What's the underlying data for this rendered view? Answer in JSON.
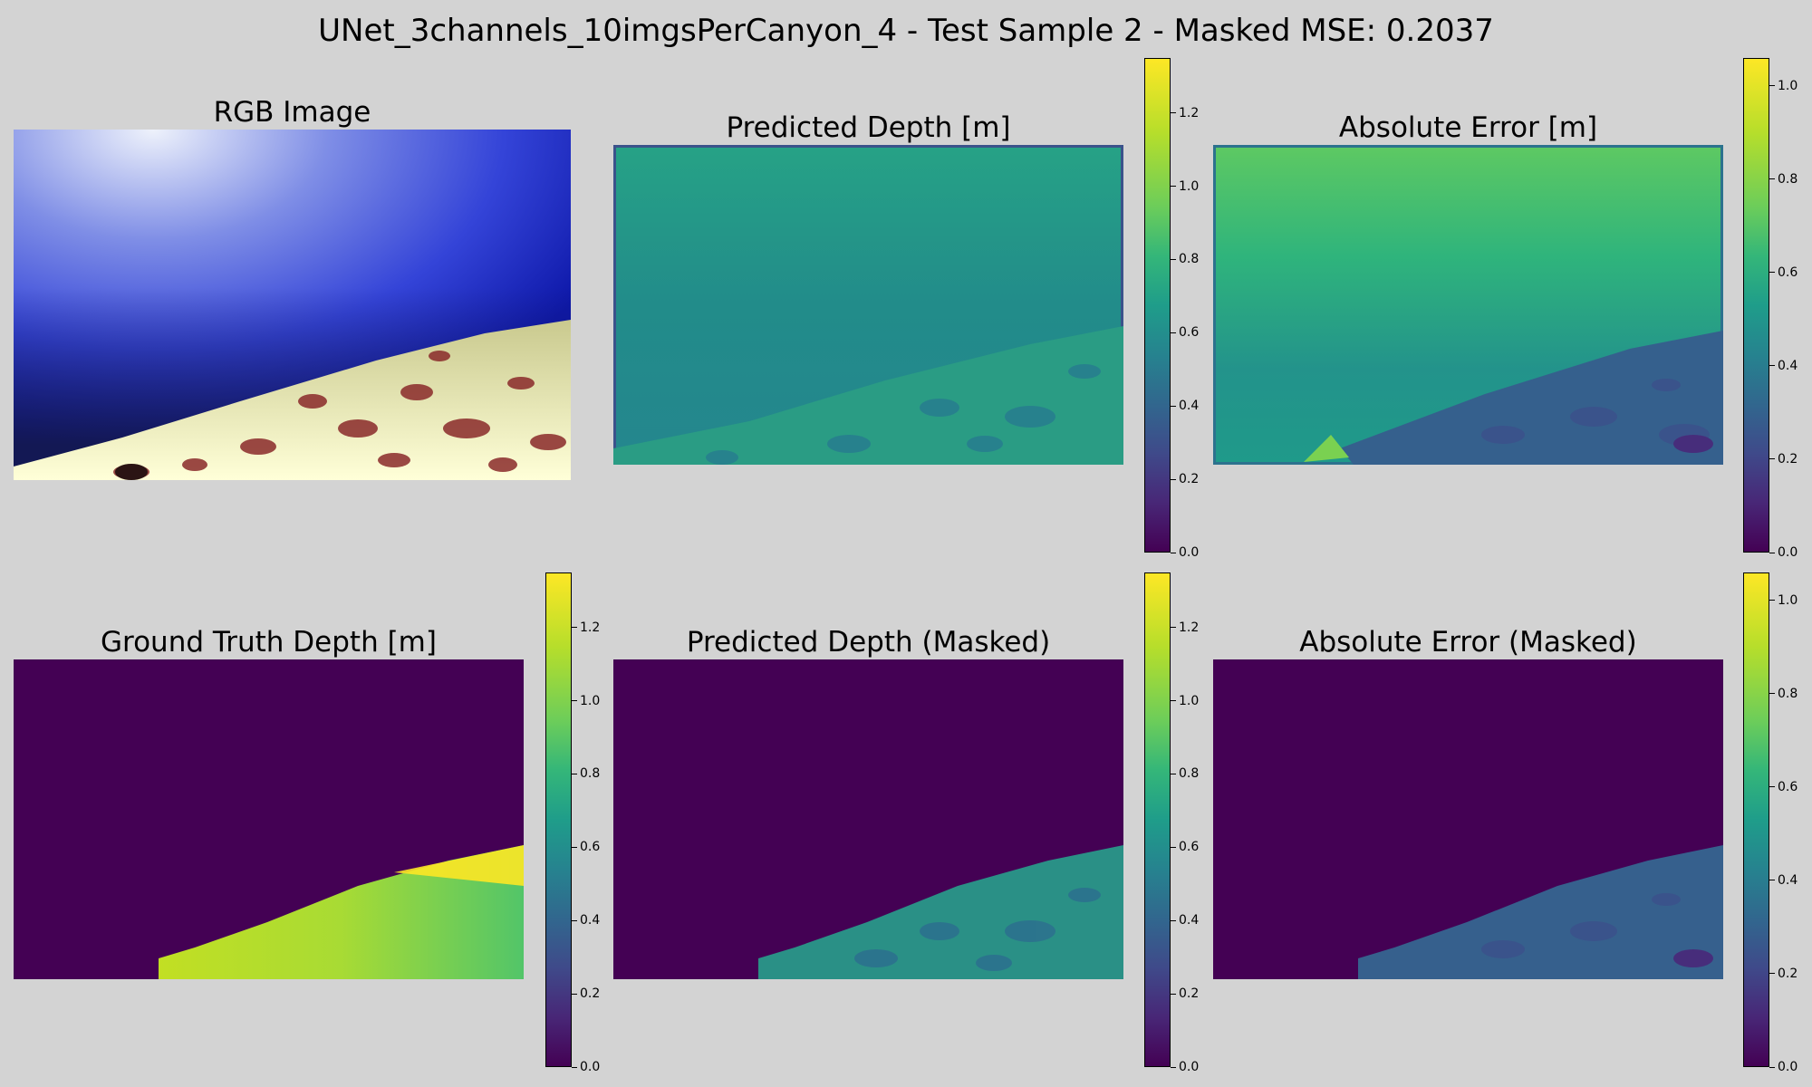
{
  "figure": {
    "title": "UNet_3channels_10imgsPerCanyon_4 - Test Sample 2 - Masked MSE: 0.2037"
  },
  "panels": [
    {
      "id": "rgb",
      "title": "RGB Image"
    },
    {
      "id": "pred",
      "title": "Predicted Depth [m]"
    },
    {
      "id": "err",
      "title": "Absolute Error [m]"
    },
    {
      "id": "gt",
      "title": "Ground Truth Depth [m]"
    },
    {
      "id": "predm",
      "title": "Predicted Depth (Masked)"
    },
    {
      "id": "errm",
      "title": "Absolute Error (Masked)"
    }
  ],
  "colors": {
    "background": "#d3d3d3",
    "viridis_low": "#440154",
    "viridis_mid": "#21918c",
    "viridis_high": "#fde725"
  },
  "chart_data": [
    {
      "type": "heatmap",
      "title": "RGB Image",
      "colormap": "rgb"
    },
    {
      "type": "heatmap",
      "title": "Predicted Depth [m]",
      "colormap": "viridis",
      "colorbar": {
        "vmin": 0.0,
        "vmax": 1.35,
        "ticks": [
          "0.0",
          "0.2",
          "0.4",
          "0.6",
          "0.8",
          "1.0",
          "1.2"
        ],
        "tick_values": [
          0.0,
          0.2,
          0.4,
          0.6,
          0.8,
          1.0,
          1.2
        ]
      }
    },
    {
      "type": "heatmap",
      "title": "Absolute Error [m]",
      "colormap": "viridis",
      "colorbar": {
        "vmin": 0.0,
        "vmax": 1.06,
        "ticks": [
          "0.0",
          "0.2",
          "0.4",
          "0.6",
          "0.8",
          "1.0"
        ],
        "tick_values": [
          0.0,
          0.2,
          0.4,
          0.6,
          0.8,
          1.0
        ]
      }
    },
    {
      "type": "heatmap",
      "title": "Ground Truth Depth [m]",
      "colormap": "viridis",
      "colorbar": {
        "vmin": 0.0,
        "vmax": 1.35,
        "ticks": [
          "0.0",
          "0.2",
          "0.4",
          "0.6",
          "0.8",
          "1.0",
          "1.2"
        ],
        "tick_values": [
          0.0,
          0.2,
          0.4,
          0.6,
          0.8,
          1.0,
          1.2
        ]
      }
    },
    {
      "type": "heatmap",
      "title": "Predicted Depth (Masked)",
      "colormap": "viridis",
      "colorbar": {
        "vmin": 0.0,
        "vmax": 1.35,
        "ticks": [
          "0.0",
          "0.2",
          "0.4",
          "0.6",
          "0.8",
          "1.0",
          "1.2"
        ],
        "tick_values": [
          0.0,
          0.2,
          0.4,
          0.6,
          0.8,
          1.0,
          1.2
        ]
      }
    },
    {
      "type": "heatmap",
      "title": "Absolute Error (Masked)",
      "colormap": "viridis",
      "colorbar": {
        "vmin": 0.0,
        "vmax": 1.06,
        "ticks": [
          "0.0",
          "0.2",
          "0.4",
          "0.6",
          "0.8",
          "1.0"
        ],
        "tick_values": [
          0.0,
          0.2,
          0.4,
          0.6,
          0.8,
          1.0
        ]
      }
    }
  ]
}
